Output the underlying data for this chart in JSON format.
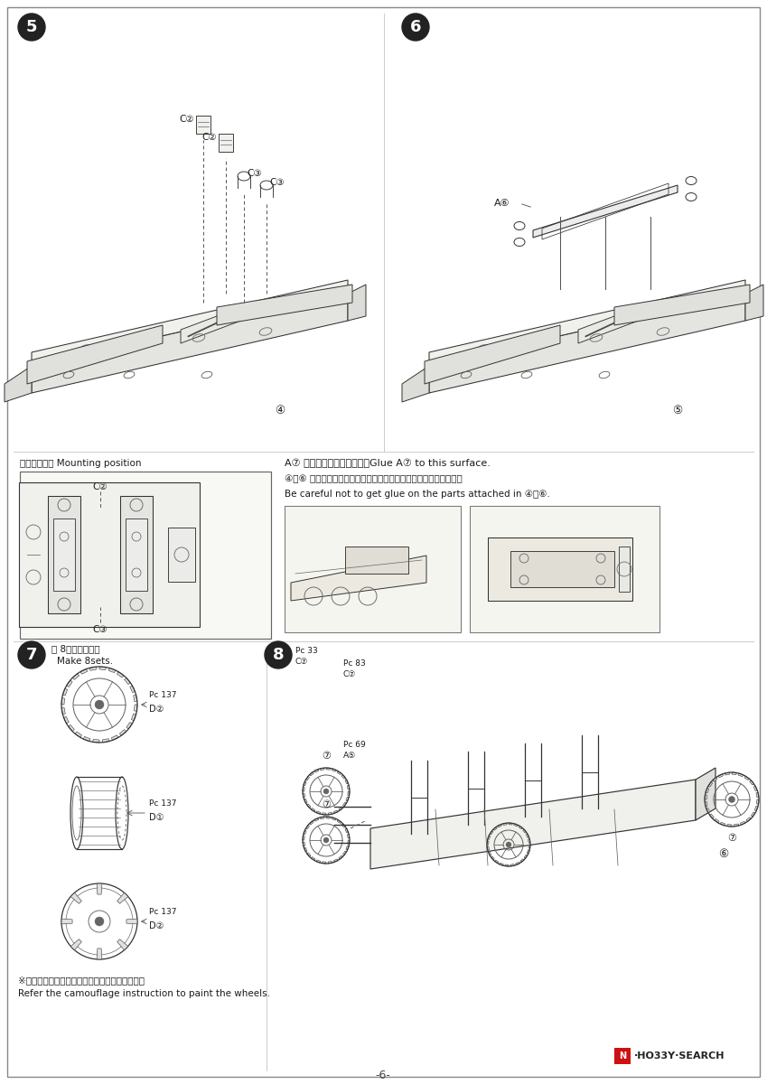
{
  "bg_color": "#ffffff",
  "line_color": "#333333",
  "text_color": "#1a1a1a",
  "light_line": "#666666",
  "step_bg": "#222222",
  "page_number": "-6-",
  "wm_red": "#cc1111",
  "mounting_label": "取り付け位置 Mounting position",
  "instr1": "A⑦ はこの面に接着します。Glue A⑦ to this surface.",
  "instr2": "④～⑥ で取り付けた部品に接着剤が付かない様、注意して下さい。",
  "instr3": "Be careful not to get glue on the parts attached in ④～⑥.",
  "wheel_jp": "※ホイールの色は迁彩指示を参考にして下さい。",
  "wheel_en": "Refer the camouflage instruction to paint the wheels.",
  "step7_jp": "＼ 8個作ります。",
  "step7_en": "Make 8sets."
}
